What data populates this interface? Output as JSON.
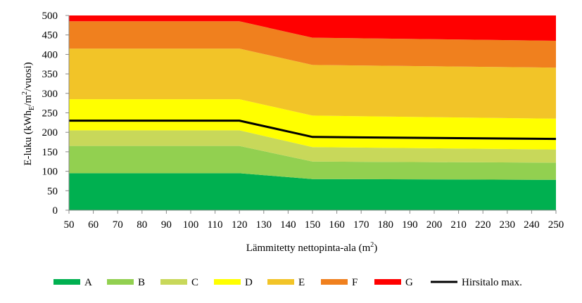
{
  "chart_data": {
    "type": "area",
    "x": [
      50,
      120,
      150,
      250
    ],
    "xlim": [
      50,
      250
    ],
    "ylim": [
      0,
      500
    ],
    "xticks": [
      50,
      60,
      70,
      80,
      90,
      100,
      110,
      120,
      130,
      140,
      150,
      160,
      170,
      180,
      190,
      200,
      210,
      220,
      230,
      240,
      250
    ],
    "yticks": [
      0,
      50,
      100,
      150,
      200,
      250,
      300,
      350,
      400,
      450,
      500
    ],
    "xlabel_main": "Lämmitetty  nettopinta-ala  (m",
    "xlabel_sup": "2",
    "xlabel_end": ")",
    "ylabel": {
      "a": "E-luku  (kWh",
      "sub": "E",
      "b": "/m",
      "sup": "2",
      "c": "/vuosi)"
    },
    "grid": false,
    "legend_position": "bottom",
    "series": [
      {
        "name": "A",
        "color": "#00b050",
        "upper": [
          95,
          95,
          80,
          78
        ]
      },
      {
        "name": "B",
        "color": "#92d050",
        "upper": [
          165,
          165,
          125,
          122
        ]
      },
      {
        "name": "C",
        "color": "#c8d85a",
        "upper": [
          205,
          205,
          162,
          156
        ]
      },
      {
        "name": "D",
        "color": "#ffff00",
        "upper": [
          285,
          285,
          243,
          235
        ]
      },
      {
        "name": "E",
        "color": "#f2c428",
        "upper": [
          415,
          415,
          373,
          366
        ]
      },
      {
        "name": "F",
        "color": "#f0801e",
        "upper": [
          485,
          485,
          443,
          435
        ]
      },
      {
        "name": "G",
        "color": "#ff0000",
        "upper": [
          500,
          500,
          500,
          500
        ]
      }
    ],
    "line": {
      "name": "Hirsitalo max.",
      "color": "#000000",
      "y": [
        230,
        230,
        188,
        183
      ]
    }
  }
}
